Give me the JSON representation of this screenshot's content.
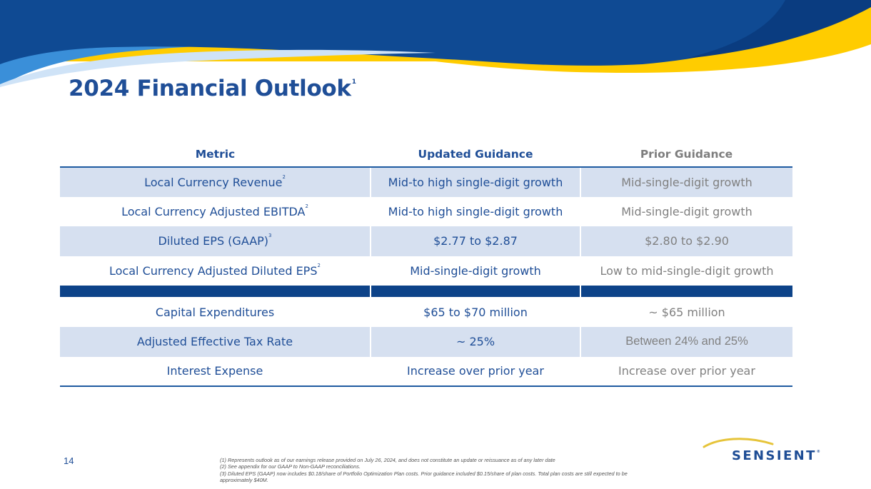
{
  "slide": {
    "title": "2024 Financial Outlook",
    "title_footnote": "1",
    "page_number": "14"
  },
  "table": {
    "headers": [
      "Metric",
      "Updated Guidance",
      "Prior Guidance"
    ],
    "rows": [
      {
        "metric": "Local Currency Revenue",
        "footnote": "2",
        "updated": "Mid-to high single-digit growth",
        "prior": "Mid-single-digit growth"
      },
      {
        "metric": "Local Currency Adjusted EBITDA",
        "footnote": "2",
        "updated": "Mid-to high single-digit growth",
        "prior": "Mid-single-digit growth"
      },
      {
        "metric": "Diluted EPS (GAAP)",
        "footnote": "3",
        "updated": "$2.77 to $2.87",
        "prior": "$2.80 to $2.90"
      },
      {
        "metric": "Local Currency Adjusted Diluted EPS",
        "footnote": "2",
        "updated": "Mid-single-digit growth",
        "prior": "Low to mid-single-digit growth"
      },
      {
        "metric": "Capital Expenditures",
        "updated": "$65 to $70 million",
        "prior": "~ $65 million"
      },
      {
        "metric": "Adjusted Effective Tax Rate",
        "updated": "~ 25%",
        "prior": "Between 24% and 25%"
      },
      {
        "metric": "Interest Expense",
        "updated": "Increase over prior year",
        "prior": "Increase over prior year"
      }
    ]
  },
  "footnotes": [
    "(1) Represents outlook as of our earnings release provided on July 26, 2024, and does not constitute an update or reissuance as of any later date",
    "(2) See appendix for our GAAP to Non-GAAP reconciliations.",
    "(3) Diluted EPS (GAAP) now includes $0.18/share of Portfolio Optimization Plan costs. Prior guidance included $0.15/share of plan costs.  Total plan costs are still expected to be approximately $40M."
  ],
  "logo": {
    "text": "SENSIENT",
    "mark": "®"
  },
  "colors": {
    "brand_blue": "#1f4e97",
    "navy": "#0d4389",
    "light_blue": "#3a8fd9",
    "yellow": "#ffcc00",
    "row_shade": "#d6e0f0",
    "prior_gray": "#808080"
  }
}
